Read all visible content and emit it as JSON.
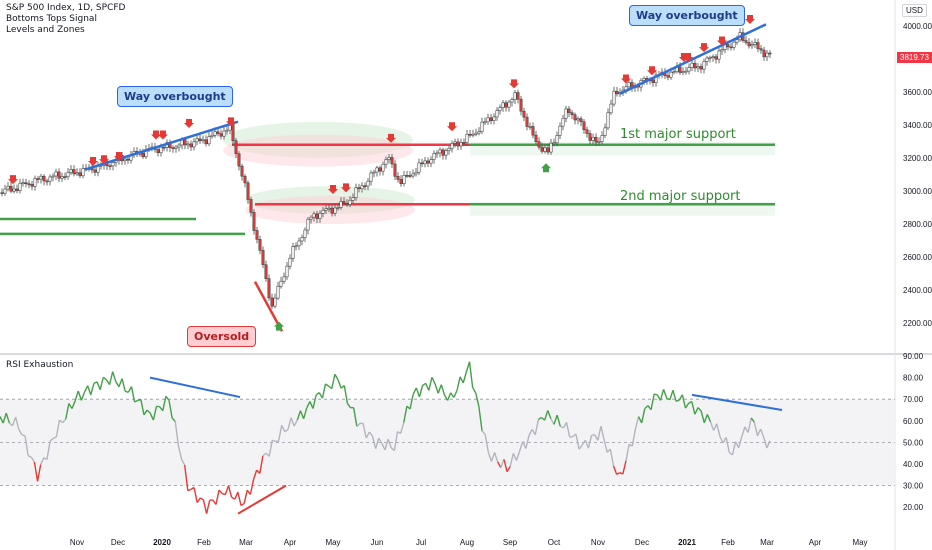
{
  "legend": {
    "title": "S&P 500 Index, 1D, SPCFD",
    "indicator1": "Bottoms Tops Signal",
    "indicator2": "Levels and Zones",
    "currency": "USD",
    "last_price": "3819.73"
  },
  "callouts": {
    "overbought_left": "Way overbought",
    "overbought_right": "Way overbought",
    "oversold": "Oversold"
  },
  "support_labels": {
    "first": "1st major support",
    "second": "2nd major support"
  },
  "chart_data": [
    {
      "type": "candlestick",
      "title": "S&P 500 Index, 1D, SPCFD",
      "ylim": [
        2100,
        4100
      ],
      "y_ticks": [
        "4000.00",
        "3800.00",
        "3600.00",
        "3400.00",
        "3200.00",
        "3000.00",
        "2800.00",
        "2600.00",
        "2400.00",
        "2200.00"
      ],
      "x_ticks": [
        "Nov",
        "Dec",
        "2020",
        "Feb",
        "Mar",
        "Apr",
        "May",
        "Jun",
        "Jul",
        "Aug",
        "Sep",
        "Oct",
        "Nov",
        "Dec",
        "2021",
        "Feb",
        "Mar",
        "Apr",
        "May"
      ],
      "close_path": [
        [
          "Oct",
          2990
        ],
        [
          "Nov",
          3070
        ],
        [
          "Dec",
          3130
        ],
        [
          "2020",
          3250
        ],
        [
          "Feb",
          3300
        ],
        [
          "Feb",
          3380
        ],
        [
          "Mar",
          2950
        ],
        [
          "Mar",
          2300
        ],
        [
          "Apr",
          2600
        ],
        [
          "Apr",
          2850
        ],
        [
          "May",
          2920
        ],
        [
          "Jun",
          3200
        ],
        [
          "Jun",
          3050
        ],
        [
          "Jul",
          3200
        ],
        [
          "Aug",
          3330
        ],
        [
          "Aug",
          3580
        ],
        [
          "Sep",
          3300
        ],
        [
          "Sep",
          3230
        ],
        [
          "Oct",
          3500
        ],
        [
          "Nov",
          3270
        ],
        [
          "Nov",
          3600
        ],
        [
          "Dec",
          3700
        ],
        [
          "2021",
          3760
        ],
        [
          "Feb",
          3930
        ],
        [
          "Mar",
          3819.73
        ]
      ],
      "levels": [
        {
          "name": "1st major support",
          "value": 3280
        },
        {
          "name": "2nd major support",
          "value": 2920
        },
        {
          "value": 2830
        },
        {
          "value": 2740
        }
      ],
      "annotations": [
        "Way overbought",
        "Way overbought",
        "Oversold"
      ]
    },
    {
      "type": "line",
      "title": "RSI Exhaustion",
      "ylim": [
        10,
        90
      ],
      "y_ticks": [
        "90.00",
        "80.00",
        "70.00",
        "60.00",
        "50.00",
        "40.00",
        "30.00",
        "20.00"
      ],
      "reference_lines": [
        70,
        50,
        30
      ],
      "series": [
        {
          "values": [
            62,
            58,
            35,
            55,
            70,
            76,
            80,
            73,
            62,
            70,
            30,
            20,
            28,
            22,
            42,
            55,
            62,
            72,
            80,
            60,
            50,
            48,
            72,
            78,
            70,
            85,
            45,
            38,
            50,
            63,
            58,
            48,
            55,
            33,
            60,
            72,
            71,
            66,
            58,
            45,
            60,
            48
          ]
        }
      ]
    }
  ]
}
